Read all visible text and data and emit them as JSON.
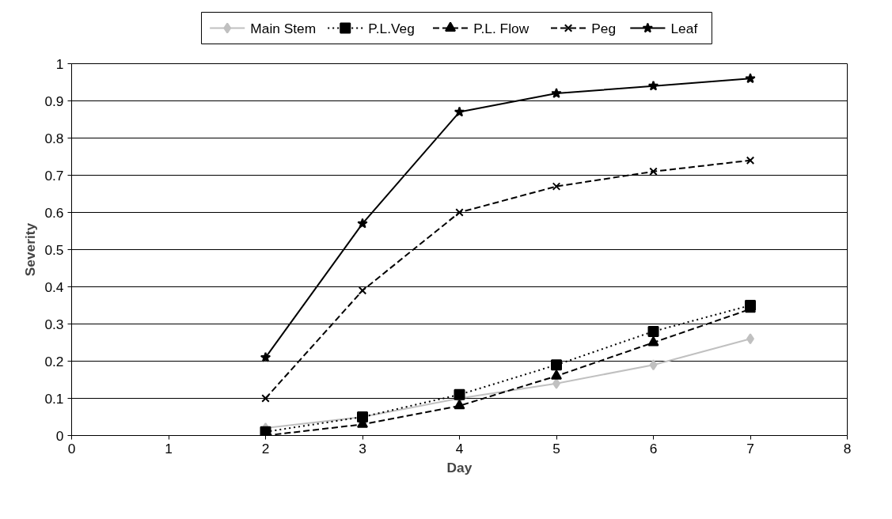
{
  "chart_data": {
    "type": "line",
    "xlabel": "Day",
    "ylabel": "Severity",
    "x": [
      2,
      3,
      4,
      5,
      6,
      7
    ],
    "xlim": [
      0,
      8
    ],
    "xticks": [
      0,
      1,
      2,
      3,
      4,
      5,
      6,
      7,
      8
    ],
    "ylim": [
      0,
      1
    ],
    "yticks": [
      0,
      0.1,
      0.2,
      0.3,
      0.4,
      0.5,
      0.6,
      0.7,
      0.8,
      0.9,
      1
    ],
    "grid": "y",
    "legend": "top",
    "series": [
      {
        "name": "Main Stem",
        "color": "#c0c0c0",
        "marker": "diamond",
        "line_style": "solid",
        "values": [
          0.02,
          0.05,
          0.1,
          0.14,
          0.19,
          0.26
        ]
      },
      {
        "name": "P.L.Veg",
        "color": "#000000",
        "marker": "square",
        "line_style": "dotted",
        "values": [
          0.01,
          0.05,
          0.11,
          0.19,
          0.28,
          0.35
        ]
      },
      {
        "name": "P.L. Flow",
        "color": "#000000",
        "marker": "triangle",
        "line_style": "dashed",
        "values": [
          0,
          0.03,
          0.08,
          0.16,
          0.25,
          0.34
        ]
      },
      {
        "name": "Peg",
        "color": "#000000",
        "marker": "cross",
        "line_style": "dashed",
        "values": [
          0.1,
          0.39,
          0.6,
          0.67,
          0.71,
          0.74
        ]
      },
      {
        "name": "Leaf",
        "color": "#000000",
        "marker": "star",
        "line_style": "solid",
        "values": [
          0.21,
          0.57,
          0.87,
          0.92,
          0.94,
          0.96
        ]
      }
    ]
  }
}
